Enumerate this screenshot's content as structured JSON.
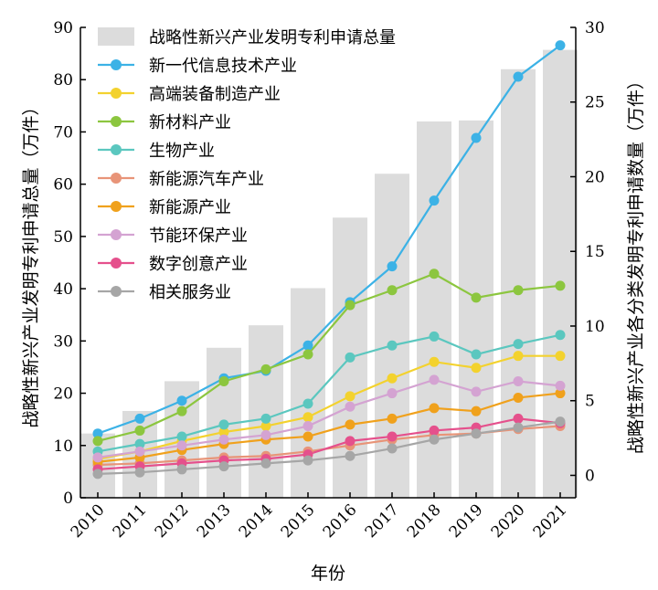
{
  "chart_data": {
    "type": "bar+line",
    "categories": [
      "2010",
      "2011",
      "2012",
      "2013",
      "2014",
      "2015",
      "2016",
      "2017",
      "2018",
      "2019",
      "2020",
      "2021"
    ],
    "xlabel": "年份",
    "ylabel_left": "战略性新兴产业发明专利申请总量（万件）",
    "ylabel_right": "战略性新兴产业各分类发明专利申请数量（万件）",
    "ylim_left": [
      0,
      90
    ],
    "ylim_right": [
      -1.5,
      30
    ],
    "yticks_left": [
      "0",
      "10",
      "20",
      "30",
      "40",
      "50",
      "60",
      "70",
      "80",
      "90"
    ],
    "yticks_right": [
      "0",
      "5",
      "10",
      "15",
      "20",
      "25",
      "30"
    ],
    "bar_series": {
      "name": "战略性新兴产业发明专利申请总量",
      "color": "#dcdcdc",
      "values": [
        12.3,
        16.6,
        22.3,
        28.7,
        33.0,
        40.1,
        53.6,
        62.0,
        72.0,
        72.2,
        82.0,
        85.7
      ]
    },
    "line_series": [
      {
        "name": "新一代信息技术产业",
        "color": "#3cb2e6",
        "values": [
          2.8,
          3.8,
          5.0,
          6.5,
          7.0,
          8.7,
          11.6,
          14.0,
          18.4,
          22.6,
          26.7,
          28.8
        ]
      },
      {
        "name": "高端装备制造产业",
        "color": "#f3d22e",
        "values": [
          1.1,
          1.6,
          2.3,
          2.9,
          3.3,
          3.9,
          5.3,
          6.5,
          7.6,
          7.2,
          8.0,
          8.0
        ]
      },
      {
        "name": "新材料产业",
        "color": "#8cc63f",
        "values": [
          2.3,
          3.0,
          4.3,
          6.3,
          7.1,
          8.1,
          11.4,
          12.4,
          13.5,
          11.9,
          12.4,
          12.7
        ]
      },
      {
        "name": "生物产业",
        "color": "#5bc7bf",
        "values": [
          1.6,
          2.1,
          2.6,
          3.4,
          3.8,
          4.8,
          7.9,
          8.7,
          9.3,
          8.1,
          8.8,
          9.4
        ]
      },
      {
        "name": "新能源汽车产业",
        "color": "#e89478",
        "values": [
          0.7,
          0.8,
          1.0,
          1.2,
          1.3,
          1.6,
          2.0,
          2.4,
          2.7,
          2.8,
          3.1,
          3.3
        ]
      },
      {
        "name": "新能源产业",
        "color": "#f0a11c",
        "values": [
          0.9,
          1.2,
          1.7,
          2.1,
          2.4,
          2.6,
          3.4,
          3.8,
          4.5,
          4.3,
          5.2,
          5.5
        ]
      },
      {
        "name": "节能环保产业",
        "color": "#d4a3d2",
        "values": [
          1.2,
          1.6,
          2.0,
          2.4,
          2.7,
          3.3,
          4.6,
          5.5,
          6.4,
          5.6,
          6.3,
          6.0
        ]
      },
      {
        "name": "数字创意产业",
        "color": "#e5508c",
        "values": [
          0.4,
          0.6,
          0.8,
          1.0,
          1.1,
          1.4,
          2.3,
          2.6,
          3.0,
          3.2,
          3.8,
          3.5
        ]
      },
      {
        "name": "相关服务业",
        "color": "#a6a6a6",
        "values": [
          0.1,
          0.2,
          0.4,
          0.6,
          0.8,
          1.0,
          1.3,
          1.8,
          2.4,
          2.8,
          3.2,
          3.6
        ]
      }
    ],
    "legend_position": "top-left",
    "grid": false
  }
}
